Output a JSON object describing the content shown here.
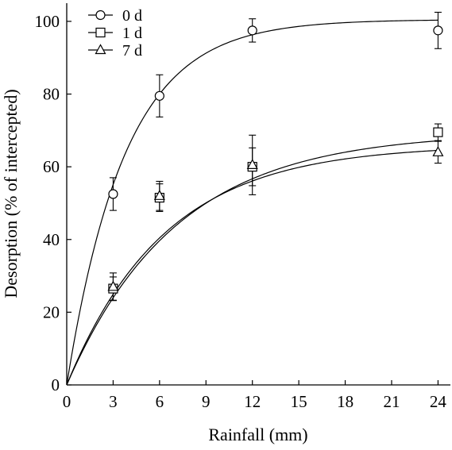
{
  "chart_data": {
    "type": "scatter",
    "title": "",
    "xlabel": "Rainfall (mm)",
    "ylabel": "Desorption (% of intercepted)",
    "xlim": [
      0,
      24.8
    ],
    "ylim": [
      0,
      105
    ],
    "xticks": [
      0,
      3,
      6,
      9,
      12,
      15,
      18,
      21,
      24
    ],
    "yticks": [
      0,
      20,
      40,
      60,
      80,
      100
    ],
    "grid": false,
    "legend_position": "top-left",
    "series": [
      {
        "name": "0 d",
        "marker": "circle",
        "x": [
          3,
          6,
          12,
          24
        ],
        "y": [
          52.5,
          79.5,
          97.5,
          97.5
        ],
        "err": [
          4.5,
          5.8,
          3.2,
          5.0
        ],
        "fit": {
          "a": 100.5,
          "k": 0.265
        }
      },
      {
        "name": "1 d",
        "marker": "square",
        "x": [
          3,
          6,
          12,
          24
        ],
        "y": [
          26.5,
          51.5,
          60.0,
          69.5
        ],
        "err": [
          3.2,
          3.8,
          5.2,
          2.3
        ],
        "fit": {
          "a": 69.5,
          "k": 0.141
        }
      },
      {
        "name": "7 d",
        "marker": "triangle",
        "x": [
          3,
          6,
          12,
          24
        ],
        "y": [
          27.0,
          52.0,
          60.5,
          64.0
        ],
        "err": [
          3.8,
          4.0,
          8.2,
          3.0
        ],
        "fit": {
          "a": 66.0,
          "k": 0.158
        }
      }
    ]
  }
}
